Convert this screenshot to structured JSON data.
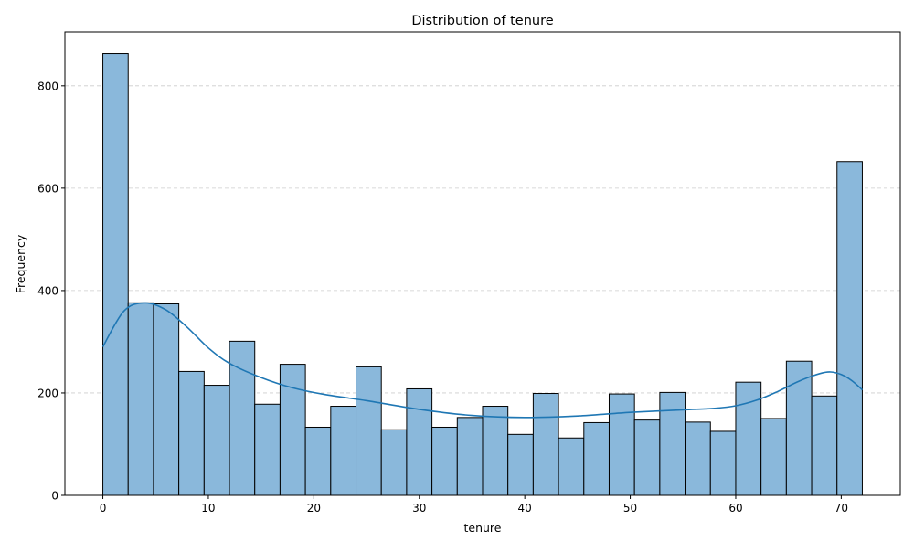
{
  "chart_data": {
    "type": "bar",
    "title": "Distribution of tenure",
    "xlabel": "tenure",
    "ylabel": "Frequency",
    "xlim": [
      -3.6,
      75.6
    ],
    "ylim": [
      0,
      905
    ],
    "x_ticks": [
      0,
      10,
      20,
      30,
      40,
      50,
      60,
      70
    ],
    "y_ticks": [
      0,
      200,
      400,
      600,
      800
    ],
    "grid": "y-dashed",
    "bin_width": 2.4,
    "bins": [
      {
        "start": 0.0,
        "count": 863
      },
      {
        "start": 2.4,
        "count": 376
      },
      {
        "start": 4.8,
        "count": 374
      },
      {
        "start": 7.2,
        "count": 242
      },
      {
        "start": 9.6,
        "count": 215
      },
      {
        "start": 12.0,
        "count": 301
      },
      {
        "start": 14.4,
        "count": 178
      },
      {
        "start": 16.8,
        "count": 256
      },
      {
        "start": 19.2,
        "count": 133
      },
      {
        "start": 21.6,
        "count": 174
      },
      {
        "start": 24.0,
        "count": 251
      },
      {
        "start": 26.4,
        "count": 128
      },
      {
        "start": 28.8,
        "count": 208
      },
      {
        "start": 31.2,
        "count": 133
      },
      {
        "start": 33.6,
        "count": 152
      },
      {
        "start": 36.0,
        "count": 174
      },
      {
        "start": 38.4,
        "count": 119
      },
      {
        "start": 40.8,
        "count": 199
      },
      {
        "start": 43.2,
        "count": 112
      },
      {
        "start": 45.6,
        "count": 142
      },
      {
        "start": 48.0,
        "count": 198
      },
      {
        "start": 50.4,
        "count": 147
      },
      {
        "start": 52.8,
        "count": 201
      },
      {
        "start": 55.2,
        "count": 143
      },
      {
        "start": 57.6,
        "count": 125
      },
      {
        "start": 60.0,
        "count": 221
      },
      {
        "start": 62.4,
        "count": 150
      },
      {
        "start": 64.8,
        "count": 262
      },
      {
        "start": 67.2,
        "count": 194
      },
      {
        "start": 69.6,
        "count": 652
      }
    ],
    "kde": {
      "x": [
        0,
        2,
        4,
        6,
        8,
        10,
        12,
        15,
        18,
        21,
        25,
        30,
        35,
        40,
        45,
        50,
        55,
        58,
        60,
        62,
        64,
        66,
        68,
        69,
        70,
        71,
        72
      ],
      "y": [
        290,
        360,
        376,
        362,
        328,
        288,
        258,
        230,
        210,
        197,
        185,
        168,
        156,
        152,
        155,
        162,
        167,
        170,
        175,
        186,
        203,
        223,
        238,
        241,
        236,
        224,
        206
      ]
    },
    "colors": {
      "bar_fill": "#8ab8db",
      "bar_edge": "#000000",
      "kde_line": "#1f77b4",
      "grid": "#cccccc"
    }
  }
}
